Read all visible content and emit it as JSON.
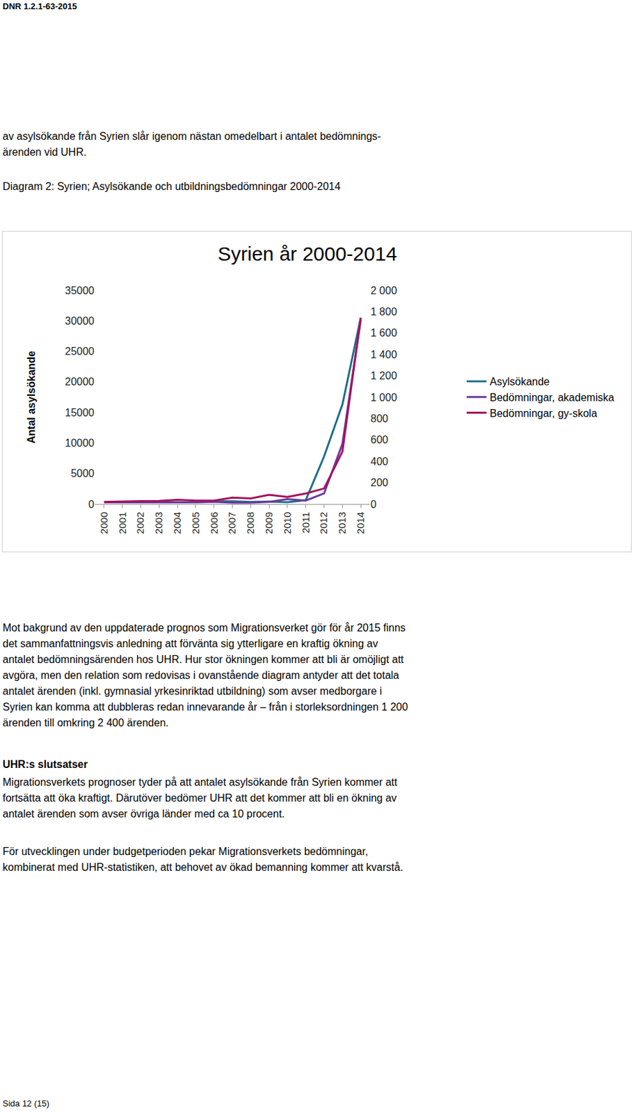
{
  "header": "DNR 1.2.1-63-2015",
  "intro": [
    "av asylsökande från Syrien slår igenom nästan omedelbart i antalet bedömnings-",
    "ärenden vid UHR."
  ],
  "caption": "Diagram 2: Syrien; Asylsökande och utbildningsbedömningar 2000-2014",
  "chart_data": {
    "type": "line",
    "title": "Syrien år 2000-2014",
    "y_label": "Antal asylsökande",
    "categories": [
      "2000",
      "2001",
      "2002",
      "2003",
      "2004",
      "2005",
      "2006",
      "2007",
      "2008",
      "2009",
      "2010",
      "2011",
      "2012",
      "2013",
      "2014"
    ],
    "series": [
      {
        "name": "Asylsökande",
        "color": "#1b6f8c",
        "values": [
          300,
          350,
          400,
          400,
          300,
          300,
          450,
          450,
          350,
          400,
          300,
          640,
          7800,
          16300,
          30500
        ]
      },
      {
        "name": "Bedömningar, akademiska",
        "color": "#6b3a9c",
        "axis": "y2",
        "values": [
          15,
          15,
          15,
          15,
          15,
          15,
          20,
          13,
          13,
          20,
          46,
          33,
          99,
          563,
          1722
        ]
      },
      {
        "name": "Bedömningar, gy-skola",
        "color": "#a3145e",
        "axis": "y2",
        "values": [
          20,
          25,
          28,
          30,
          40,
          33,
          33,
          60,
          53,
          86,
          66,
          99,
          146,
          490,
          1742
        ]
      }
    ],
    "ylim": [
      0,
      35000
    ],
    "yticks": [
      0,
      5000,
      10000,
      15000,
      20000,
      25000,
      30000,
      35000
    ],
    "y2lim": [
      0,
      2000
    ],
    "y2ticks": [
      0,
      200,
      400,
      600,
      800,
      {
        "value": 1000,
        "label": "1 000"
      },
      {
        "value": 1200,
        "label": "1 200"
      },
      {
        "value": 1400,
        "label": "1 400"
      },
      {
        "value": 1600,
        "label": "1 600"
      },
      {
        "value": 1800,
        "label": "1 800"
      },
      {
        "value": 2000,
        "label": "2 000"
      }
    ],
    "legend": "right",
    "grid": false
  },
  "paragraph_1": [
    "Mot bakgrund av den uppdaterade prognos som Migrationsverket gör för år 2015 finns",
    "det sammanfattningsvis anledning att förvänta sig ytterligare en kraftig ökning av",
    "antalet bedömningsärenden hos UHR. Hur stor ökningen kommer att bli är omöjligt att",
    "avgöra, men den relation som redovisas i ovanstående diagram antyder att det totala",
    "antalet ärenden (inkl. gymnasial yrkesinriktad utbildning) som avser medborgare i",
    "Syrien kan komma att dubbleras redan innevarande år – från i storleksordningen 1 200",
    "ärenden till omkring 2 400 ärenden."
  ],
  "heading": "UHR:s slutsatser",
  "paragraph_2": [
    "Migrationsverkets prognoser tyder på att antalet asylsökande från Syrien kommer att",
    "fortsätta att öka kraftigt. Därutöver bedömer UHR att det kommer att bli en ökning av",
    "antalet ärenden som avser övriga länder med ca 10 procent."
  ],
  "paragraph_3": [
    "För utvecklingen under budgetperioden pekar Migrationsverkets bedömningar,",
    "kombinerat med UHR-statistiken, att behovet av ökad bemanning kommer att kvarstå."
  ],
  "footer": "Sida 12 (15)"
}
